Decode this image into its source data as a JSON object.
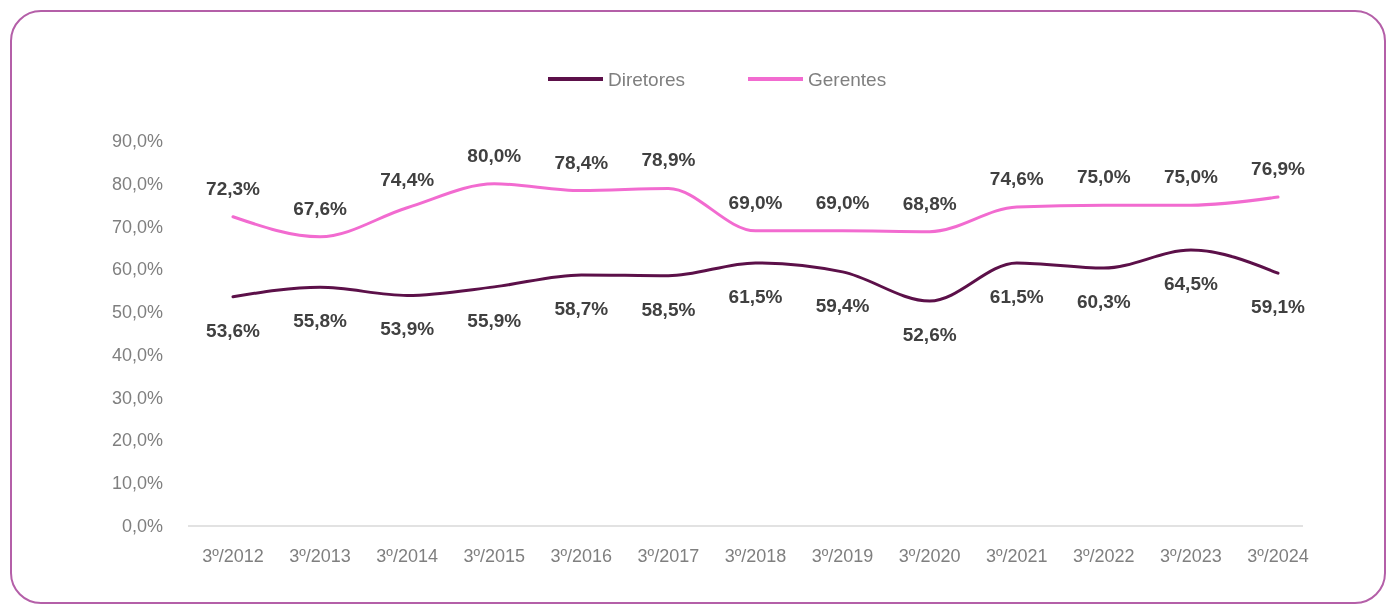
{
  "chart_data": {
    "type": "line",
    "categories": [
      "3º/2012",
      "3º/2013",
      "3º/2014",
      "3º/2015",
      "3º/2016",
      "3º/2017",
      "3º/2018",
      "3º/2019",
      "3º/2020",
      "3º/2021",
      "3º/2022",
      "3º/2023",
      "3º/2024"
    ],
    "series": [
      {
        "name": "Diretores",
        "color": "#5c1049",
        "values": [
          53.6,
          55.8,
          53.9,
          55.9,
          58.7,
          58.5,
          61.5,
          59.4,
          52.6,
          61.5,
          60.3,
          64.5,
          59.1
        ],
        "value_labels": [
          "53,6%",
          "55,8%",
          "53,9%",
          "55,9%",
          "58,7%",
          "58,5%",
          "61,5%",
          "59,4%",
          "52,6%",
          "61,5%",
          "60,3%",
          "64,5%",
          "59,1%"
        ]
      },
      {
        "name": "Gerentes",
        "color": "#f26bd0",
        "values": [
          72.3,
          67.6,
          74.4,
          80.0,
          78.4,
          78.9,
          69.0,
          69.0,
          68.8,
          74.6,
          75.0,
          75.0,
          76.9
        ],
        "value_labels": [
          "72,3%",
          "67,6%",
          "74,4%",
          "80,0%",
          "78,4%",
          "78,9%",
          "69,0%",
          "69,0%",
          "68,8%",
          "74,6%",
          "75,0%",
          "75,0%",
          "76,9%"
        ]
      }
    ],
    "ylim": [
      0,
      90
    ],
    "yticks": [
      {
        "value": 0,
        "label": "0,0%"
      },
      {
        "value": 10,
        "label": "10,0%"
      },
      {
        "value": 20,
        "label": "20,0%"
      },
      {
        "value": 30,
        "label": "30,0%"
      },
      {
        "value": 40,
        "label": "40,0%"
      },
      {
        "value": 50,
        "label": "50,0%"
      },
      {
        "value": 60,
        "label": "60,0%"
      },
      {
        "value": 70,
        "label": "70,0%"
      },
      {
        "value": 80,
        "label": "80,0%"
      },
      {
        "value": 90,
        "label": "90,0%"
      }
    ],
    "legend": "top",
    "grid": false,
    "marker": "none",
    "line_style": "solid"
  }
}
